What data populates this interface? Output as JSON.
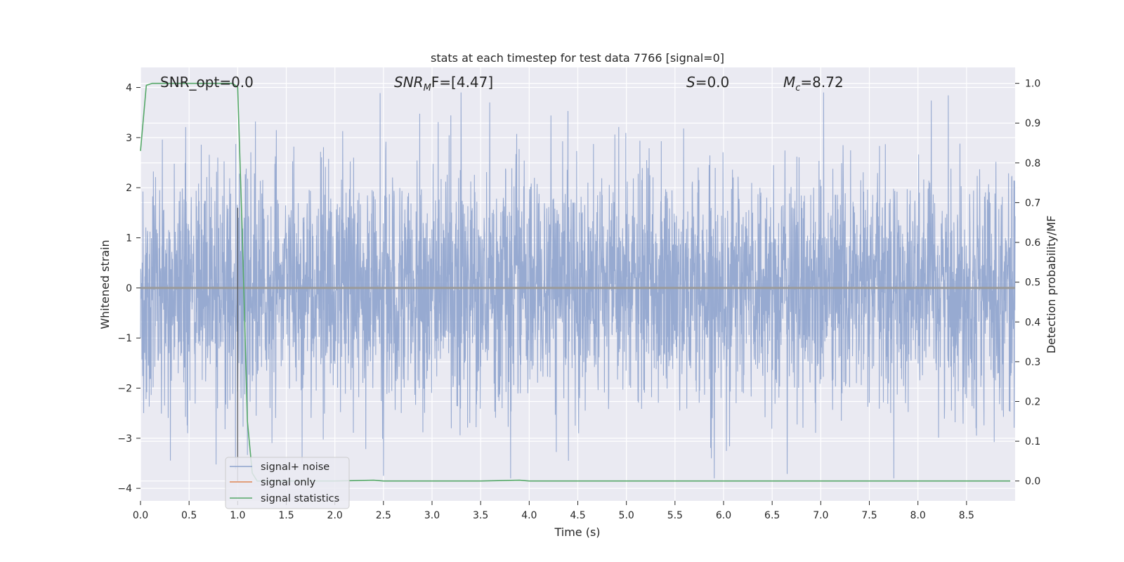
{
  "chart_data": {
    "type": "line",
    "title": "stats at each timestep for test data 7766 [signal=0]",
    "xlabel": "Time (s)",
    "ylabel_left": "Whitened strain",
    "ylabel_right": "Detection probability/MF",
    "xlim": [
      0.0,
      9.0
    ],
    "ylim_left": [
      -4.25,
      4.4
    ],
    "ylim_right": [
      -0.05,
      1.04
    ],
    "xticks": [
      "0.0",
      "0.5",
      "1.0",
      "1.5",
      "2.0",
      "2.5",
      "3.0",
      "3.5",
      "4.0",
      "4.5",
      "5.0",
      "5.5",
      "6.0",
      "6.5",
      "7.0",
      "7.5",
      "8.0",
      "8.5"
    ],
    "yticks_left": [
      "−4",
      "−3",
      "−2",
      "−1",
      "0",
      "1",
      "2",
      "3",
      "4"
    ],
    "yticks_right": [
      "0.0",
      "0.1",
      "0.2",
      "0.3",
      "0.4",
      "0.5",
      "0.6",
      "0.7",
      "0.8",
      "0.9",
      "1.0"
    ],
    "grid": true,
    "legend_position": "lower-left",
    "annotations": {
      "snr_opt": "SNR_opt=0.0",
      "snr_mf_main": "SNR",
      "snr_mf_sub": "M",
      "snr_mf_rest": "F=[4.47]",
      "s_main": "S",
      "s_rest": "=0.0",
      "mc_main": "M",
      "mc_sub": "c",
      "mc_rest": "=8.72"
    },
    "vertical_marker_x": 1.0,
    "series": [
      {
        "name": "signal+ noise",
        "color": "#8ea3cd",
        "axis": "left",
        "description_values": {
          "envelope_core": [
            -1.5,
            1.6
          ],
          "peak_max": 4.0,
          "peak_min": -3.9
        }
      },
      {
        "name": "signal only",
        "color": "#dd8452",
        "axis": "left",
        "x": [
          0.0,
          9.0
        ],
        "y": [
          0.0,
          0.0
        ]
      },
      {
        "name": "signal statistics",
        "color": "#55a868",
        "axis": "right",
        "x": [
          0.0,
          0.06,
          0.12,
          0.2,
          0.4,
          0.6,
          0.8,
          0.95,
          1.0,
          1.05,
          1.1,
          1.15,
          1.2,
          1.5,
          2.0,
          2.4,
          2.5,
          3.5,
          3.9,
          4.0,
          5.0,
          6.0,
          7.0,
          8.0,
          8.95
        ],
        "y": [
          0.83,
          0.995,
          1.0,
          1.0,
          1.0,
          1.0,
          1.0,
          1.0,
          0.99,
          0.6,
          0.15,
          0.02,
          0.0,
          0.0,
          0.0,
          0.002,
          0.0,
          0.0,
          0.002,
          0.0,
          0.0,
          0.0,
          0.0,
          0.0,
          0.0
        ]
      }
    ]
  }
}
